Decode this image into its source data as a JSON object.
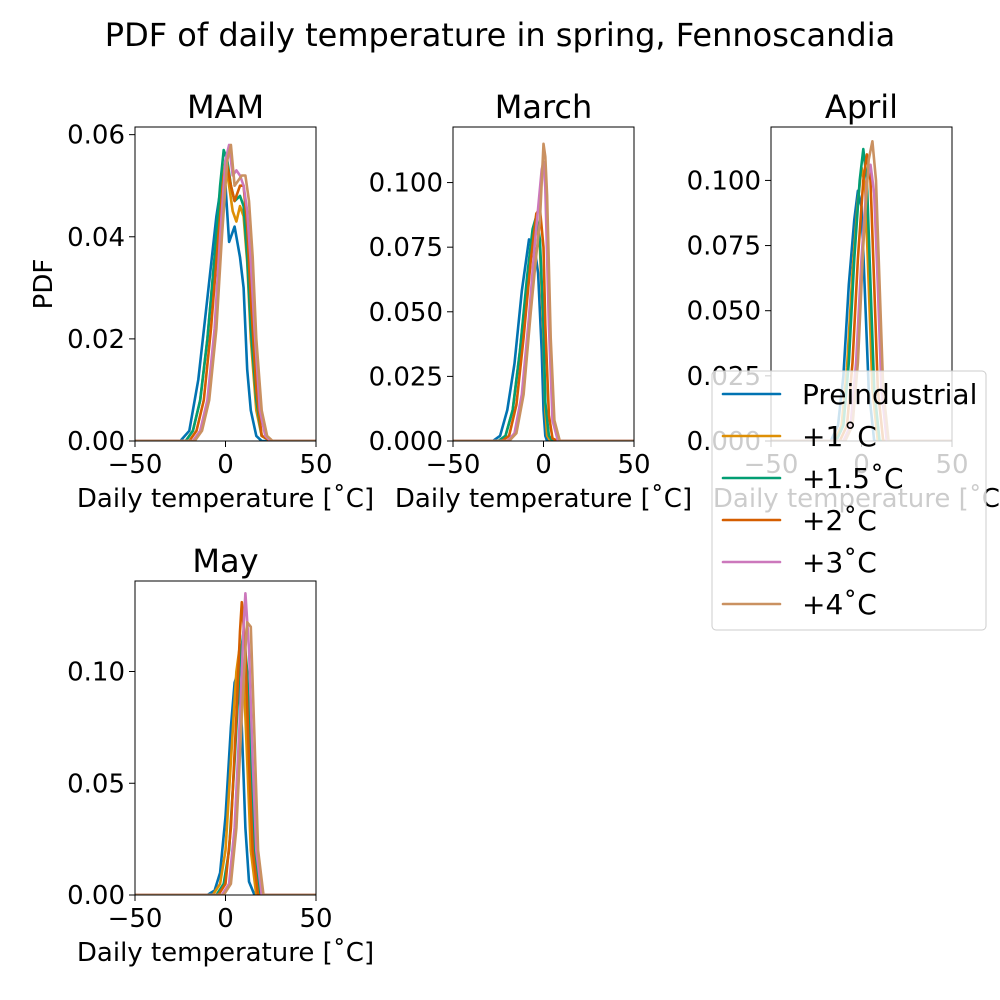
{
  "figure": {
    "suptitle": "PDF of daily temperature in spring, Fennoscandia"
  },
  "colors": {
    "Preindustrial": "#0173b2",
    "+1°C": "#de8f05",
    "+1.5°C": "#029e73",
    "+2°C": "#d55e00",
    "+3°C": "#cc78bc",
    "+4°C": "#ca9161"
  },
  "legend": {
    "placement": "right, overlapping April panel",
    "entries": [
      "Preindustrial",
      "+1˚C",
      "+1.5˚C",
      "+2˚C",
      "+3˚C",
      "+4˚C"
    ]
  },
  "chart_data": [
    {
      "type": "line",
      "title": "MAM",
      "xlabel": "Daily temperature [˚C]",
      "ylabel": "PDF",
      "xlim": [
        -50,
        50
      ],
      "ylim": [
        0,
        0.0615
      ],
      "xticks": [
        -50,
        0,
        50
      ],
      "xtick_labels": [
        "−50",
        "0",
        "50"
      ],
      "yticks": [
        0,
        0.02,
        0.04,
        0.06
      ],
      "ytick_labels": [
        "0.00",
        "0.02",
        "0.04",
        "0.06"
      ],
      "grid": false,
      "series": [
        {
          "name": "Preindustrial",
          "x": [
            -50,
            -25,
            -20,
            -15,
            -10,
            -5,
            -2,
            0,
            2,
            5,
            8,
            10,
            12,
            14,
            17,
            20,
            25,
            50
          ],
          "y": [
            0,
            0,
            0.002,
            0.012,
            0.028,
            0.044,
            0.051,
            0.05,
            0.039,
            0.042,
            0.036,
            0.03,
            0.014,
            0.006,
            0.001,
            0,
            0,
            0
          ]
        },
        {
          "name": "+1°C",
          "x": [
            -50,
            -22,
            -18,
            -14,
            -10,
            -6,
            -3,
            0,
            2,
            4,
            6,
            8,
            10,
            12,
            14,
            17,
            20,
            25,
            50
          ],
          "y": [
            0,
            0,
            0.002,
            0.008,
            0.02,
            0.036,
            0.048,
            0.055,
            0.05,
            0.045,
            0.043,
            0.046,
            0.044,
            0.035,
            0.02,
            0.006,
            0.001,
            0,
            0
          ]
        },
        {
          "name": "+1.5°C",
          "x": [
            -50,
            -22,
            -18,
            -14,
            -10,
            -6,
            -3,
            -1,
            1,
            3,
            5,
            8,
            10,
            12,
            14,
            17,
            20,
            25,
            50
          ],
          "y": [
            0,
            0,
            0.002,
            0.008,
            0.02,
            0.036,
            0.05,
            0.057,
            0.055,
            0.05,
            0.047,
            0.048,
            0.046,
            0.036,
            0.022,
            0.008,
            0.001,
            0,
            0
          ]
        },
        {
          "name": "+2°C",
          "x": [
            -50,
            -20,
            -16,
            -12,
            -8,
            -4,
            -1,
            1,
            3,
            5,
            8,
            10,
            12,
            14,
            17,
            20,
            25,
            50
          ],
          "y": [
            0,
            0,
            0.002,
            0.008,
            0.022,
            0.04,
            0.052,
            0.054,
            0.05,
            0.047,
            0.05,
            0.05,
            0.042,
            0.028,
            0.01,
            0.001,
            0,
            0
          ]
        },
        {
          "name": "+3°C",
          "x": [
            -50,
            -18,
            -14,
            -10,
            -6,
            -3,
            0,
            2,
            4,
            6,
            8,
            10,
            12,
            14,
            16,
            19,
            22,
            25,
            50
          ],
          "y": [
            0,
            0,
            0.002,
            0.008,
            0.022,
            0.04,
            0.055,
            0.058,
            0.052,
            0.053,
            0.052,
            0.05,
            0.045,
            0.035,
            0.022,
            0.006,
            0.001,
            0,
            0
          ]
        },
        {
          "name": "+4°C",
          "x": [
            -50,
            -17,
            -13,
            -9,
            -5,
            -2,
            1,
            3,
            5,
            7,
            9,
            11,
            13,
            15,
            17,
            20,
            23,
            26,
            50
          ],
          "y": [
            0,
            0,
            0.002,
            0.008,
            0.022,
            0.04,
            0.055,
            0.058,
            0.05,
            0.051,
            0.052,
            0.052,
            0.047,
            0.036,
            0.02,
            0.006,
            0.001,
            0,
            0
          ]
        }
      ]
    },
    {
      "type": "line",
      "title": "March",
      "xlabel": "Daily temperature [˚C]",
      "ylabel": "",
      "xlim": [
        -50,
        50
      ],
      "ylim": [
        0,
        0.1215
      ],
      "xticks": [
        -50,
        0,
        50
      ],
      "xtick_labels": [
        "−50",
        "0",
        "50"
      ],
      "yticks": [
        0,
        0.025,
        0.05,
        0.075,
        0.1
      ],
      "ytick_labels": [
        "0.000",
        "0.025",
        "0.050",
        "0.075",
        "0.100"
      ],
      "grid": false,
      "series": [
        {
          "name": "Preindustrial",
          "x": [
            -50,
            -28,
            -24,
            -20,
            -16,
            -12,
            -8,
            -5,
            -3,
            -1,
            0,
            1,
            2,
            4,
            7,
            50
          ],
          "y": [
            0,
            0,
            0.002,
            0.012,
            0.03,
            0.058,
            0.078,
            0.075,
            0.065,
            0.035,
            0.012,
            0.002,
            0,
            0,
            0,
            0
          ]
        },
        {
          "name": "+1°C",
          "x": [
            -50,
            -25,
            -21,
            -17,
            -13,
            -9,
            -6,
            -4,
            -2,
            0,
            1,
            2,
            4,
            7,
            50
          ],
          "y": [
            0,
            0,
            0.002,
            0.012,
            0.035,
            0.062,
            0.08,
            0.086,
            0.075,
            0.04,
            0.012,
            0.002,
            0,
            0,
            0
          ]
        },
        {
          "name": "+1.5°C",
          "x": [
            -50,
            -25,
            -21,
            -17,
            -13,
            -9,
            -6,
            -4,
            -2,
            0,
            1,
            3,
            5,
            8,
            50
          ],
          "y": [
            0,
            0,
            0.002,
            0.012,
            0.035,
            0.064,
            0.082,
            0.087,
            0.078,
            0.045,
            0.015,
            0.002,
            0,
            0,
            0
          ]
        },
        {
          "name": "+2°C",
          "x": [
            -50,
            -23,
            -19,
            -15,
            -11,
            -7,
            -4,
            -2,
            0,
            1,
            3,
            5,
            8,
            50
          ],
          "y": [
            0,
            0,
            0.002,
            0.014,
            0.04,
            0.07,
            0.088,
            0.09,
            0.075,
            0.045,
            0.01,
            0.001,
            0,
            0
          ]
        },
        {
          "name": "+3°C",
          "x": [
            -50,
            -20,
            -16,
            -12,
            -8,
            -5,
            -3,
            -1,
            0,
            1,
            3,
            5,
            8,
            50
          ],
          "y": [
            0,
            0,
            0.003,
            0.018,
            0.048,
            0.075,
            0.09,
            0.105,
            0.108,
            0.098,
            0.045,
            0.008,
            0,
            0
          ]
        },
        {
          "name": "+4°C",
          "x": [
            -50,
            -19,
            -15,
            -11,
            -7,
            -4,
            -2,
            -1,
            0,
            1,
            2,
            4,
            6,
            9,
            50
          ],
          "y": [
            0,
            0,
            0.003,
            0.018,
            0.05,
            0.072,
            0.085,
            0.1,
            0.115,
            0.11,
            0.095,
            0.04,
            0.008,
            0,
            0
          ]
        }
      ]
    },
    {
      "type": "line",
      "title": "April",
      "xlabel": "Daily temperature [˚C]",
      "ylabel": "",
      "xlim": [
        -50,
        50
      ],
      "ylim": [
        0,
        0.1205
      ],
      "xticks": [
        -50,
        0,
        50
      ],
      "xtick_labels": [
        "−50",
        "0",
        "50"
      ],
      "yticks": [
        0,
        0.025,
        0.05,
        0.075,
        0.1
      ],
      "ytick_labels": [
        "0.000",
        "0.025",
        "0.050",
        "0.075",
        "0.100"
      ],
      "grid": false,
      "series": [
        {
          "name": "Preindustrial",
          "x": [
            -50,
            -17,
            -13,
            -10,
            -7,
            -4,
            -2,
            0,
            2,
            4,
            7,
            50
          ],
          "y": [
            0,
            0,
            0.006,
            0.025,
            0.06,
            0.085,
            0.096,
            0.09,
            0.055,
            0.02,
            0,
            0
          ]
        },
        {
          "name": "+1°C",
          "x": [
            -50,
            -15,
            -11,
            -8,
            -5,
            -2,
            0,
            2,
            4,
            6,
            9,
            50
          ],
          "y": [
            0,
            0,
            0.006,
            0.028,
            0.065,
            0.092,
            0.105,
            0.098,
            0.06,
            0.02,
            0,
            0
          ]
        },
        {
          "name": "+1.5°C",
          "x": [
            -50,
            -14,
            -10,
            -7,
            -4,
            -1,
            1,
            3,
            5,
            7,
            10,
            50
          ],
          "y": [
            0,
            0,
            0.006,
            0.03,
            0.07,
            0.1,
            0.112,
            0.1,
            0.06,
            0.02,
            0,
            0
          ]
        },
        {
          "name": "+2°C",
          "x": [
            -50,
            -12,
            -8,
            -5,
            -2,
            1,
            3,
            5,
            7,
            9,
            12,
            50
          ],
          "y": [
            0,
            0,
            0.006,
            0.03,
            0.07,
            0.1,
            0.11,
            0.1,
            0.06,
            0.02,
            0,
            0
          ]
        },
        {
          "name": "+3°C",
          "x": [
            -50,
            -10,
            -6,
            -3,
            0,
            3,
            5,
            7,
            9,
            11,
            14,
            50
          ],
          "y": [
            0,
            0,
            0.006,
            0.03,
            0.07,
            0.1,
            0.106,
            0.095,
            0.06,
            0.02,
            0,
            0
          ]
        },
        {
          "name": "+4°C",
          "x": [
            -50,
            -9,
            -5,
            -2,
            1,
            4,
            6,
            8,
            10,
            12,
            15,
            50
          ],
          "y": [
            0,
            0,
            0.006,
            0.03,
            0.075,
            0.108,
            0.115,
            0.1,
            0.06,
            0.02,
            0,
            0
          ]
        }
      ]
    },
    {
      "type": "line",
      "title": "May",
      "xlabel": "Daily temperature [˚C]",
      "ylabel": "",
      "xlim": [
        -50,
        50
      ],
      "ylim": [
        0,
        0.1405
      ],
      "xticks": [
        -50,
        0,
        50
      ],
      "xtick_labels": [
        "−50",
        "0",
        "50"
      ],
      "yticks": [
        0,
        0.05,
        0.1
      ],
      "ytick_labels": [
        "0.00",
        "0.05",
        "0.10"
      ],
      "grid": false,
      "series": [
        {
          "name": "Preindustrial",
          "x": [
            -50,
            -10,
            -6,
            -3,
            0,
            3,
            5,
            7,
            9,
            11,
            13,
            16,
            50
          ],
          "y": [
            0,
            0,
            0.002,
            0.01,
            0.035,
            0.075,
            0.095,
            0.1,
            0.075,
            0.03,
            0.006,
            0,
            0
          ]
        },
        {
          "name": "+1°C",
          "x": [
            -50,
            -7,
            -3,
            0,
            3,
            6,
            8,
            10,
            12,
            14,
            17,
            50
          ],
          "y": [
            0,
            0,
            0.005,
            0.02,
            0.06,
            0.1,
            0.112,
            0.1,
            0.06,
            0.02,
            0,
            0
          ]
        },
        {
          "name": "+1.5°C",
          "x": [
            -50,
            -5,
            -1,
            2,
            5,
            8,
            10,
            12,
            14,
            16,
            19,
            50
          ],
          "y": [
            0,
            0,
            0.005,
            0.02,
            0.06,
            0.105,
            0.118,
            0.1,
            0.06,
            0.02,
            0,
            0
          ]
        },
        {
          "name": "+2°C",
          "x": [
            -50,
            -4,
            0,
            3,
            6,
            8,
            9,
            11,
            13,
            15,
            18,
            50
          ],
          "y": [
            0,
            0,
            0.005,
            0.03,
            0.08,
            0.118,
            0.131,
            0.11,
            0.06,
            0.02,
            0,
            0
          ]
        },
        {
          "name": "+3°C",
          "x": [
            -50,
            -2,
            2,
            5,
            8,
            10,
            11,
            13,
            15,
            17,
            20,
            50
          ],
          "y": [
            0,
            0,
            0.005,
            0.03,
            0.08,
            0.12,
            0.135,
            0.11,
            0.06,
            0.02,
            0,
            0
          ]
        },
        {
          "name": "+4°C",
          "x": [
            -50,
            -1,
            3,
            6,
            9,
            11,
            12,
            14,
            16,
            18,
            21,
            50
          ],
          "y": [
            0,
            0,
            0.005,
            0.03,
            0.08,
            0.11,
            0.122,
            0.12,
            0.07,
            0.02,
            0,
            0
          ]
        }
      ]
    }
  ]
}
